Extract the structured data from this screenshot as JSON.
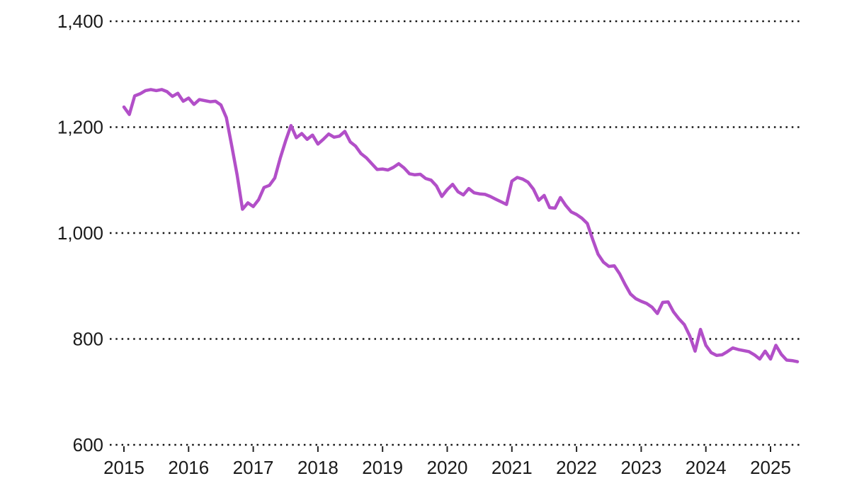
{
  "chart_data": {
    "type": "line",
    "title": "",
    "xlabel": "",
    "ylabel": "",
    "grid": "horizontal-dotted",
    "legend": "none",
    "background_color": "#ffffff",
    "tick_label_color": "#1a1a1a",
    "gridline_color": "#151515",
    "ylim": [
      600,
      1400
    ],
    "y_axis": {
      "tick_values": [
        1400,
        1200,
        1000,
        800,
        600
      ],
      "tick_labels": [
        "1,400",
        "1,200",
        "1,000",
        "800",
        "600"
      ]
    },
    "x_axis": {
      "tick_labels": [
        "2015",
        "2016",
        "2017",
        "2018",
        "2019",
        "2020",
        "2021",
        "2022",
        "2023",
        "2024",
        "2025"
      ],
      "frequency": "monthly",
      "start_month": "2015-01",
      "end_month": "2025-06"
    },
    "series": [
      {
        "name": "value",
        "color": "#b24fc8",
        "values": [
          1238,
          1224,
          1259,
          1263,
          1269,
          1271,
          1269,
          1271,
          1267,
          1258,
          1264,
          1249,
          1255,
          1243,
          1252,
          1250,
          1248,
          1249,
          1242,
          1218,
          1165,
          1110,
          1045,
          1057,
          1050,
          1063,
          1086,
          1090,
          1104,
          1141,
          1174,
          1203,
          1180,
          1188,
          1177,
          1185,
          1168,
          1177,
          1187,
          1181,
          1183,
          1192,
          1172,
          1164,
          1150,
          1142,
          1131,
          1120,
          1121,
          1119,
          1124,
          1131,
          1123,
          1112,
          1110,
          1111,
          1103,
          1100,
          1089,
          1069,
          1082,
          1092,
          1078,
          1072,
          1084,
          1076,
          1074,
          1073,
          1069,
          1064,
          1059,
          1054,
          1098,
          1105,
          1102,
          1096,
          1083,
          1062,
          1071,
          1048,
          1047,
          1067,
          1052,
          1040,
          1035,
          1028,
          1018,
          988,
          960,
          945,
          937,
          938,
          923,
          903,
          885,
          876,
          871,
          867,
          860,
          848,
          869,
          870,
          851,
          838,
          827,
          806,
          777,
          818,
          788,
          774,
          769,
          770,
          776,
          783,
          780,
          778,
          776,
          770,
          762,
          777,
          762,
          788,
          771,
          760,
          759,
          757
        ]
      }
    ]
  }
}
